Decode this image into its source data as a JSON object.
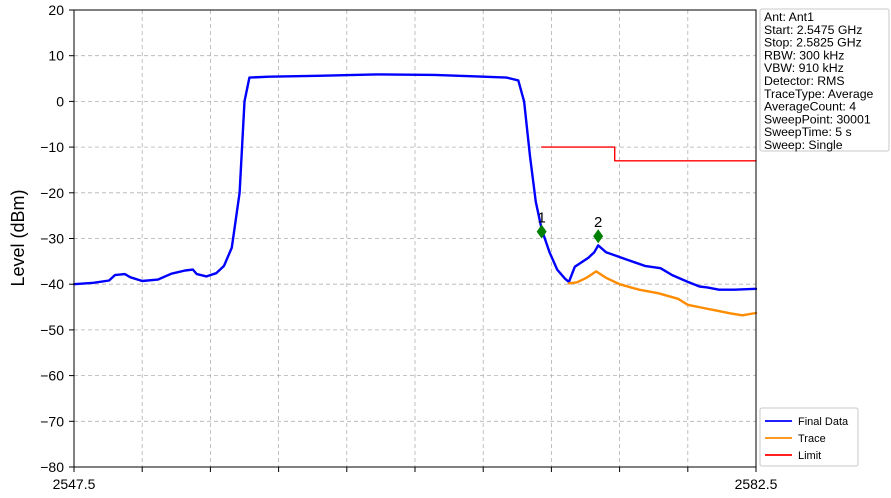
{
  "chart_data": {
    "type": "line",
    "ylabel": "Level (dBm)",
    "xlim": [
      2547.5,
      2582.5
    ],
    "ylim": [
      -80,
      20
    ],
    "x_ticks": [
      2547.5,
      2582.5
    ],
    "x_minor_ticks": 10,
    "y_ticks": [
      20,
      10,
      0,
      -10,
      -20,
      -30,
      -40,
      -50,
      -60,
      -70,
      -80
    ],
    "y_tick_labels": [
      "20",
      "10",
      "0",
      "−10",
      "−20",
      "−30",
      "−40",
      "−50",
      "−60",
      "−70",
      "−80"
    ],
    "grid": true,
    "legend_position": "bottom-right, outside plot",
    "series": [
      {
        "name": "Final Data",
        "color": "#0000ff",
        "points": [
          [
            2547.5,
            -40
          ],
          [
            2548.5,
            -39.7
          ],
          [
            2549.3,
            -39.2
          ],
          [
            2549.6,
            -38.0
          ],
          [
            2550.1,
            -37.8
          ],
          [
            2550.4,
            -38.5
          ],
          [
            2551.0,
            -39.3
          ],
          [
            2551.8,
            -39.0
          ],
          [
            2552.5,
            -37.7
          ],
          [
            2553.2,
            -37.0
          ],
          [
            2553.6,
            -36.8
          ],
          [
            2553.8,
            -37.8
          ],
          [
            2554.3,
            -38.3
          ],
          [
            2554.8,
            -37.6
          ],
          [
            2555.2,
            -36.0
          ],
          [
            2555.6,
            -32.0
          ],
          [
            2556.0,
            -20.0
          ],
          [
            2556.25,
            0.0
          ],
          [
            2556.5,
            5.2
          ],
          [
            2557.5,
            5.4
          ],
          [
            2560.0,
            5.6
          ],
          [
            2563.0,
            5.9
          ],
          [
            2566.0,
            5.8
          ],
          [
            2568.0,
            5.5
          ],
          [
            2569.7,
            5.2
          ],
          [
            2570.3,
            4.6
          ],
          [
            2570.6,
            0.0
          ],
          [
            2570.9,
            -12.0
          ],
          [
            2571.2,
            -22.0
          ],
          [
            2571.5,
            -28.0
          ],
          [
            2571.9,
            -33.0
          ],
          [
            2572.3,
            -36.8
          ],
          [
            2572.7,
            -38.8
          ],
          [
            2572.9,
            -39.5
          ],
          [
            2573.2,
            -36.2
          ],
          [
            2573.9,
            -34.2
          ],
          [
            2574.2,
            -33.0
          ],
          [
            2574.4,
            -31.5
          ],
          [
            2574.8,
            -33.0
          ],
          [
            2575.8,
            -34.5
          ],
          [
            2576.8,
            -36.0
          ],
          [
            2577.6,
            -36.5
          ],
          [
            2578.2,
            -38.0
          ],
          [
            2579.0,
            -39.5
          ],
          [
            2579.6,
            -40.5
          ],
          [
            2580.0,
            -40.7
          ],
          [
            2580.6,
            -41.2
          ],
          [
            2581.4,
            -41.2
          ],
          [
            2582.5,
            -41.0
          ]
        ]
      },
      {
        "name": "Trace",
        "color": "#ff8c00",
        "points": [
          [
            2572.9,
            -39.8
          ],
          [
            2573.3,
            -39.6
          ],
          [
            2573.8,
            -38.6
          ],
          [
            2574.3,
            -37.2
          ],
          [
            2574.8,
            -38.6
          ],
          [
            2575.5,
            -40.0
          ],
          [
            2576.5,
            -41.2
          ],
          [
            2577.5,
            -42.0
          ],
          [
            2578.5,
            -43.2
          ],
          [
            2579.0,
            -44.5
          ],
          [
            2579.8,
            -45.2
          ],
          [
            2580.5,
            -45.8
          ],
          [
            2581.2,
            -46.4
          ],
          [
            2581.8,
            -46.8
          ],
          [
            2582.5,
            -46.3
          ]
        ]
      },
      {
        "name": "Limit",
        "color": "#ff0000",
        "points": [
          [
            2571.5,
            -10
          ],
          [
            2575.25,
            -10
          ],
          [
            2575.25,
            -13
          ],
          [
            2582.5,
            -13
          ]
        ]
      }
    ],
    "markers": [
      {
        "label": "1",
        "x": 2571.5,
        "y": -28.5,
        "color": "#008000"
      },
      {
        "label": "2",
        "x": 2574.4,
        "y": -29.5,
        "color": "#008000"
      }
    ]
  },
  "info_box": {
    "lines": [
      "Ant: Ant1",
      "Start: 2.5475 GHz",
      "Stop: 2.5825 GHz",
      "RBW: 300 kHz",
      "VBW: 910 kHz",
      "Detector: RMS",
      "TraceType: Average",
      "AverageCount: 4",
      "SweepPoint: 30001",
      "SweepTime: 5 s",
      "Sweep: Single"
    ]
  },
  "legend": {
    "entries": [
      {
        "label": "Final Data",
        "color": "#0000ff"
      },
      {
        "label": "Trace",
        "color": "#ff8c00"
      },
      {
        "label": "Limit",
        "color": "#ff0000"
      }
    ]
  }
}
